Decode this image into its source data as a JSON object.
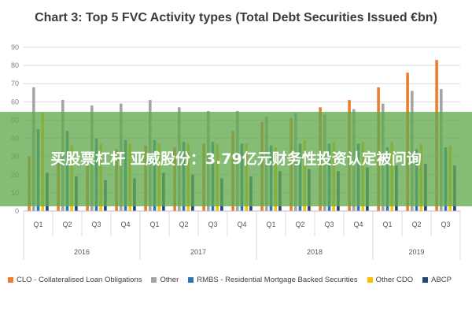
{
  "chart_data": {
    "type": "bar",
    "title": "Chart 3: Top 5 FVC Activity types (Total Debt Securities Issued €bn)",
    "ylim": [
      0,
      90
    ],
    "yticks": [
      0,
      10,
      20,
      30,
      40,
      50,
      60,
      70,
      80,
      90
    ],
    "grid": true,
    "legend_position": "bottom",
    "categories": [
      "Q1",
      "Q2",
      "Q3",
      "Q4",
      "Q1",
      "Q2",
      "Q3",
      "Q4",
      "Q1",
      "Q2",
      "Q3",
      "Q4",
      "Q1",
      "Q2",
      "Q3"
    ],
    "years": [
      {
        "label": "2016",
        "count": 4
      },
      {
        "label": "2017",
        "count": 4
      },
      {
        "label": "2018",
        "count": 4
      },
      {
        "label": "2019",
        "count": 3
      }
    ],
    "series": [
      {
        "name": "CLO - Collateralised Loan Obligations",
        "color": "#ed7d31",
        "values": [
          30,
          32,
          32,
          34,
          36,
          35,
          37,
          44,
          49,
          51,
          57,
          61,
          68,
          76,
          83
        ]
      },
      {
        "name": "Other",
        "color": "#a5a5a5",
        "values": [
          68,
          61,
          58,
          59,
          61,
          57,
          55,
          55,
          52,
          54,
          53,
          56,
          59,
          66,
          67
        ]
      },
      {
        "name": "RMBS - Residential Mortgage Backed Securities",
        "color": "#2e75b6",
        "values": [
          45,
          44,
          40,
          39,
          39,
          38,
          38,
          37,
          36,
          37,
          37,
          37,
          35,
          34,
          35
        ]
      },
      {
        "name": "Other CDO",
        "color": "#ffc000",
        "values": [
          54,
          36,
          37,
          37,
          37,
          37,
          37,
          37,
          35,
          39,
          38,
          38,
          38,
          37,
          36
        ]
      },
      {
        "name": "ABCP",
        "color": "#264478",
        "values": [
          21,
          19,
          17,
          18,
          21,
          20,
          18,
          19,
          22,
          23,
          22,
          24,
          25,
          26,
          25
        ]
      }
    ]
  },
  "overlay": {
    "text": "买股票杠杆 亚威股份：3.79亿元财务性投资认定被问询"
  }
}
